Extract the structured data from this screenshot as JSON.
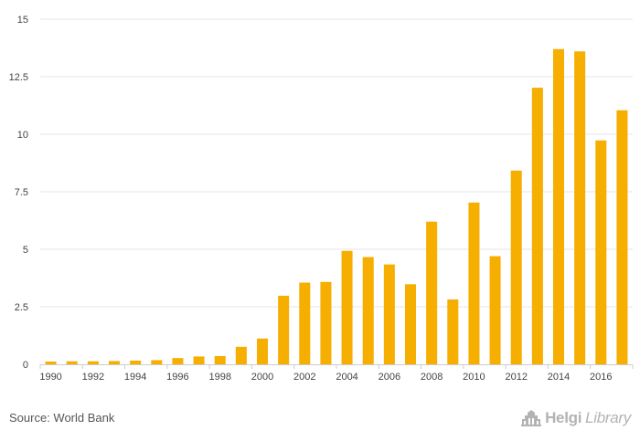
{
  "chart_data": {
    "type": "bar",
    "title": "",
    "xlabel": "",
    "ylabel": "",
    "categories": [
      "1990",
      "1991",
      "1992",
      "1993",
      "1994",
      "1995",
      "1996",
      "1997",
      "1998",
      "1999",
      "2000",
      "2001",
      "2002",
      "2003",
      "2004",
      "2005",
      "2006",
      "2007",
      "2008",
      "2009",
      "2010",
      "2011",
      "2012",
      "2013",
      "2014",
      "2015",
      "2016",
      "2017"
    ],
    "x_tick_labels": [
      "1990",
      "1992",
      "1994",
      "1996",
      "1998",
      "2000",
      "2002",
      "2004",
      "2006",
      "2008",
      "2010",
      "2012",
      "2014",
      "2016"
    ],
    "values": [
      0.12,
      0.13,
      0.13,
      0.14,
      0.16,
      0.18,
      0.27,
      0.34,
      0.36,
      0.76,
      1.12,
      2.98,
      3.55,
      3.58,
      4.93,
      4.66,
      4.34,
      3.48,
      6.2,
      2.82,
      7.03,
      4.7,
      8.42,
      12.02,
      13.7,
      13.6,
      9.73,
      11.04
    ],
    "ylim": [
      0,
      15
    ],
    "y_ticks": [
      0,
      2.5,
      5,
      7.5,
      10,
      12.5,
      15
    ],
    "y_tick_labels": [
      "0",
      "2.5",
      "5",
      "7.5",
      "10",
      "12.5",
      "15"
    ],
    "grid": true,
    "bar_color": "#f6ae00",
    "grid_color": "#e6e6e6"
  },
  "footer": {
    "source": "Source: World Bank",
    "brand_part1": "Helgi",
    "brand_part2": "Library",
    "brand_icon": "helgi-library-logo-icon"
  }
}
